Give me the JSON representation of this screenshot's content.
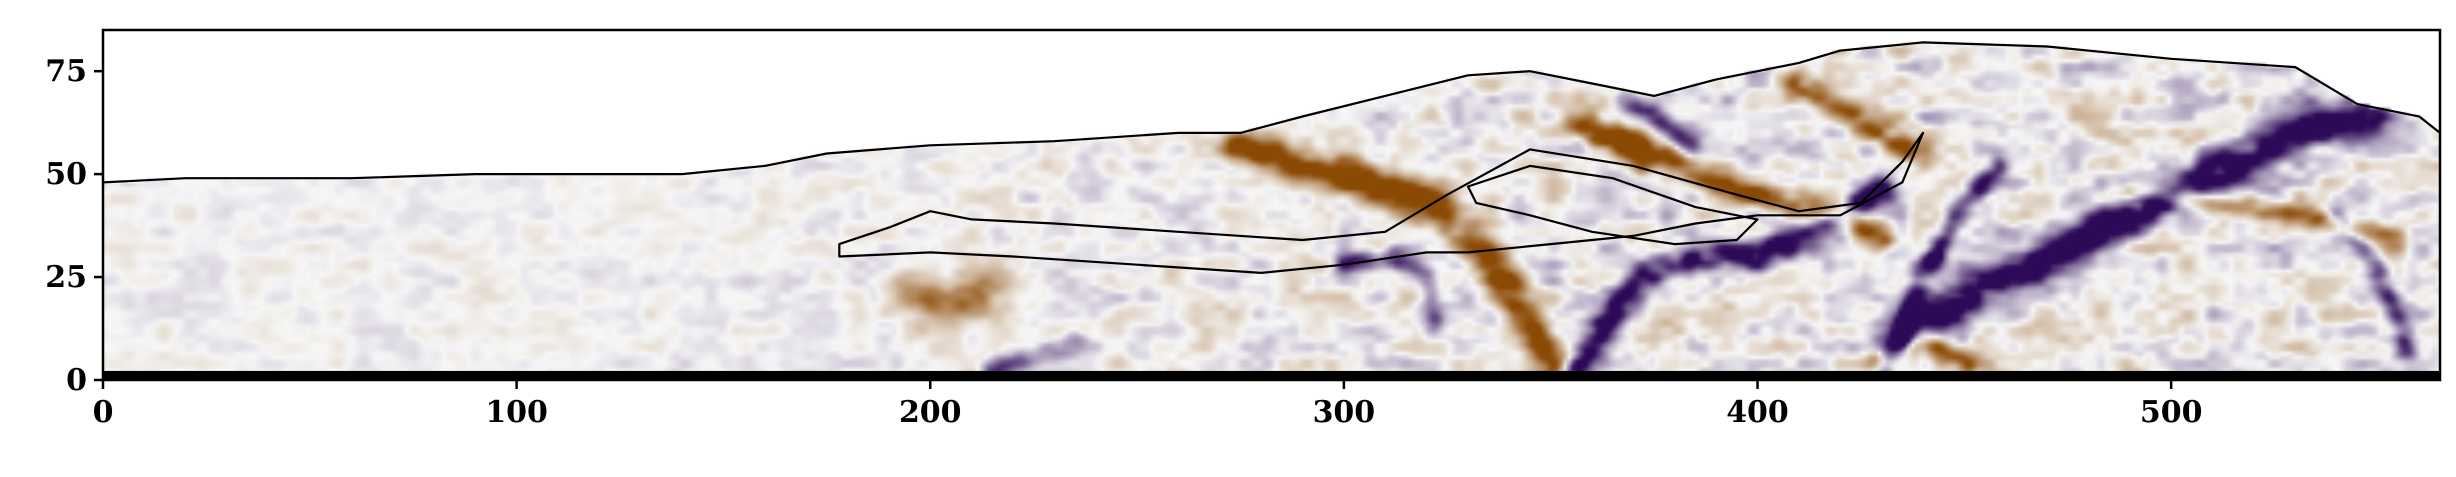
{
  "chart_data": {
    "type": "heatmap",
    "title": "",
    "xlabel": "",
    "ylabel": "",
    "xlim": [
      0,
      565
    ],
    "ylim": [
      0,
      85
    ],
    "x_ticks": [
      0,
      100,
      200,
      300,
      400,
      500
    ],
    "y_ticks": [
      0,
      25,
      50,
      75
    ],
    "x_tick_labels": [
      "0",
      "100",
      "200",
      "300",
      "400",
      "500"
    ],
    "y_tick_labels": [
      "0",
      "25",
      "50",
      "75"
    ],
    "colormap": {
      "negative": "#2d0a57",
      "neutral": "#f7f7f7",
      "positive": "#8b4a04"
    },
    "grid": false,
    "surface_outline": [
      [
        0,
        48
      ],
      [
        20,
        49
      ],
      [
        60,
        49
      ],
      [
        90,
        50
      ],
      [
        140,
        50
      ],
      [
        160,
        52
      ],
      [
        175,
        55
      ],
      [
        200,
        57
      ],
      [
        230,
        58
      ],
      [
        260,
        60
      ],
      [
        275,
        60
      ],
      [
        290,
        64
      ],
      [
        310,
        69
      ],
      [
        330,
        74
      ],
      [
        345,
        75
      ],
      [
        360,
        72
      ],
      [
        375,
        69
      ],
      [
        390,
        73
      ],
      [
        410,
        77
      ],
      [
        420,
        80
      ],
      [
        440,
        82
      ],
      [
        470,
        81
      ],
      [
        500,
        78
      ],
      [
        530,
        76
      ],
      [
        545,
        67
      ],
      [
        560,
        64
      ],
      [
        565,
        60
      ]
    ],
    "bodies": [
      {
        "outline": [
          [
            178,
            33
          ],
          [
            190,
            37
          ],
          [
            200,
            41
          ],
          [
            210,
            39
          ],
          [
            230,
            38
          ],
          [
            260,
            36
          ],
          [
            290,
            34
          ],
          [
            310,
            36
          ],
          [
            325,
            45
          ],
          [
            345,
            56
          ],
          [
            370,
            52
          ],
          [
            395,
            45
          ],
          [
            410,
            41
          ],
          [
            425,
            43
          ],
          [
            435,
            53
          ],
          [
            440,
            60
          ],
          [
            435,
            48
          ],
          [
            420,
            40
          ],
          [
            400,
            40
          ],
          [
            385,
            38
          ],
          [
            370,
            35
          ],
          [
            350,
            33
          ],
          [
            330,
            31
          ],
          [
            320,
            31
          ],
          [
            300,
            28
          ],
          [
            280,
            26
          ],
          [
            250,
            28
          ],
          [
            220,
            30
          ],
          [
            200,
            31
          ],
          [
            178,
            30
          ]
        ]
      },
      {
        "outline": [
          [
            330,
            47
          ],
          [
            345,
            52
          ],
          [
            365,
            49
          ],
          [
            385,
            42
          ],
          [
            400,
            39
          ],
          [
            395,
            34
          ],
          [
            380,
            33
          ],
          [
            360,
            36
          ],
          [
            345,
            40
          ],
          [
            332,
            43
          ]
        ]
      }
    ],
    "anomalies": [
      {
        "sign": -1,
        "strength": 1.0,
        "path": [
          [
            435,
            10
          ],
          [
            455,
            22
          ],
          [
            475,
            32
          ],
          [
            500,
            45
          ],
          [
            520,
            55
          ],
          [
            535,
            62
          ],
          [
            548,
            64
          ]
        ],
        "width": 6
      },
      {
        "sign": -1,
        "strength": 0.9,
        "path": [
          [
            355,
            0
          ],
          [
            362,
            12
          ],
          [
            372,
            25
          ],
          [
            385,
            30
          ],
          [
            400,
            30
          ],
          [
            415,
            37
          ],
          [
            430,
            46
          ]
        ],
        "width": 4
      },
      {
        "sign": 1,
        "strength": 0.95,
        "path": [
          [
            275,
            57
          ],
          [
            290,
            52
          ],
          [
            305,
            48
          ],
          [
            315,
            45
          ],
          [
            325,
            41
          ]
        ],
        "width": 5
      },
      {
        "sign": 1,
        "strength": 0.9,
        "path": [
          [
            330,
            35
          ],
          [
            338,
            25
          ],
          [
            345,
            14
          ],
          [
            350,
            4
          ]
        ],
        "width": 5
      },
      {
        "sign": 1,
        "strength": 0.8,
        "path": [
          [
            360,
            62
          ],
          [
            375,
            55
          ],
          [
            390,
            48
          ],
          [
            405,
            44
          ],
          [
            420,
            40
          ],
          [
            430,
            35
          ]
        ],
        "width": 4
      },
      {
        "sign": -1,
        "strength": 0.8,
        "path": [
          [
            430,
            2
          ],
          [
            435,
            12
          ],
          [
            440,
            25
          ],
          [
            448,
            40
          ],
          [
            458,
            52
          ]
        ],
        "width": 3
      },
      {
        "sign": 1,
        "strength": 0.7,
        "path": [
          [
            410,
            72
          ],
          [
            420,
            66
          ],
          [
            430,
            60
          ],
          [
            440,
            55
          ]
        ],
        "width": 4
      },
      {
        "sign": 1,
        "strength": 0.8,
        "path": [
          [
            430,
            4
          ],
          [
            440,
            10
          ],
          [
            450,
            4
          ]
        ],
        "width": 4
      },
      {
        "sign": 1,
        "strength": 0.6,
        "path": [
          [
            490,
            46
          ],
          [
            510,
            43
          ],
          [
            530,
            40
          ],
          [
            555,
            34
          ]
        ],
        "width": 3
      },
      {
        "sign": -1,
        "strength": 0.5,
        "path": [
          [
            215,
            2
          ],
          [
            225,
            6
          ],
          [
            235,
            9
          ]
        ],
        "width": 3
      },
      {
        "sign": -1,
        "strength": 0.6,
        "path": [
          [
            540,
            40
          ],
          [
            548,
            30
          ],
          [
            553,
            20
          ],
          [
            557,
            8
          ]
        ],
        "width": 3
      },
      {
        "sign": 1,
        "strength": 0.5,
        "path": [
          [
            195,
            20
          ],
          [
            205,
            18
          ],
          [
            215,
            22
          ]
        ],
        "width": 6
      },
      {
        "sign": -1,
        "strength": 0.5,
        "path": [
          [
            300,
            28
          ],
          [
            312,
            30
          ],
          [
            320,
            25
          ],
          [
            322,
            15
          ]
        ],
        "width": 3
      },
      {
        "sign": 1,
        "strength": 0.55,
        "path": [
          [
            355,
            62
          ],
          [
            365,
            58
          ],
          [
            372,
            52
          ]
        ],
        "width": 3
      },
      {
        "sign": -1,
        "strength": 0.6,
        "path": [
          [
            367,
            68
          ],
          [
            376,
            63
          ],
          [
            384,
            57
          ]
        ],
        "width": 3
      }
    ]
  }
}
